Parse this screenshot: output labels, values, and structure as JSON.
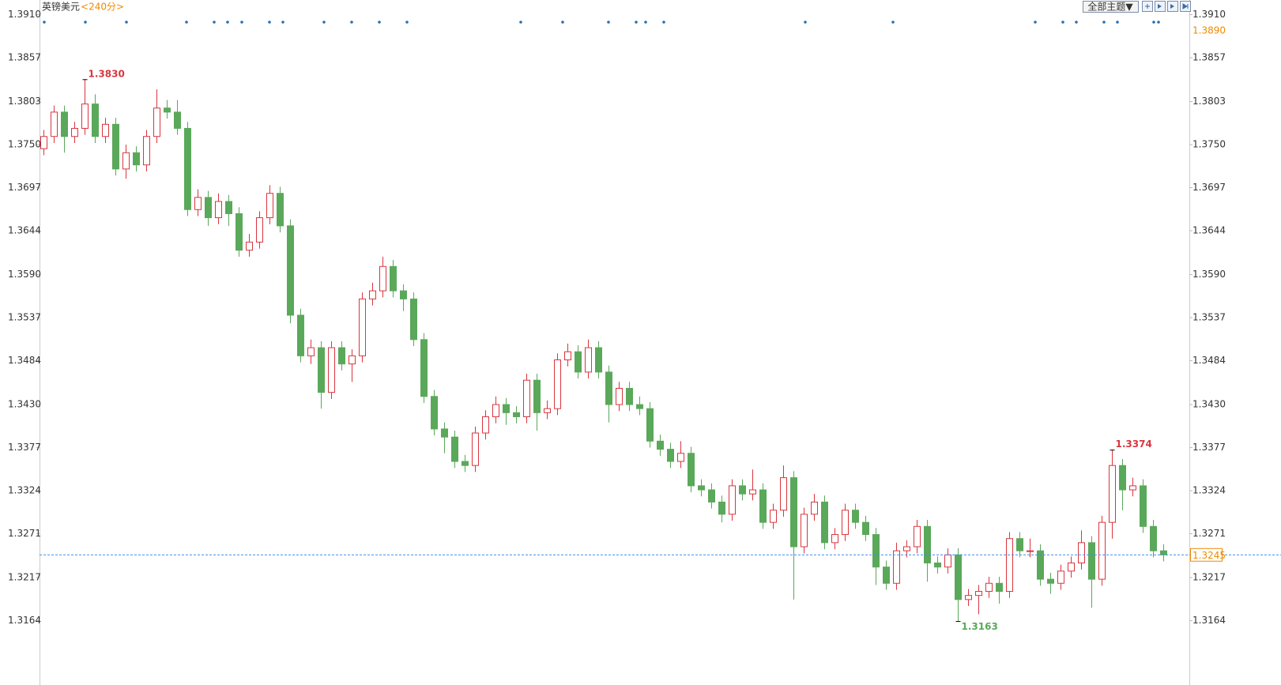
{
  "chart_data": {
    "type": "candlestick",
    "title": "英镑美元",
    "subtitle": "<240分>",
    "buttons": [
      "全部主题▼"
    ],
    "up_color": "#d9363e",
    "down_color": "#5aa85a",
    "last_color": "#3a8ee6",
    "ylim": [
      1.3113,
      1.3928
    ],
    "yticks": [
      {
        "value": 1.391,
        "label": "1.3910"
      },
      1.3857,
      1.3803,
      {
        "value": 1.375,
        "label": "1.3750"
      },
      1.3697,
      1.3644,
      {
        "value": 1.359,
        "label": "1.3590"
      },
      1.3537,
      1.3484,
      {
        "value": 1.343,
        "label": "1.3430"
      },
      1.3377,
      1.3324,
      1.3271,
      1.3217,
      1.3164
    ],
    "right_marker": {
      "value": 1.389,
      "label": "1.3890"
    },
    "last_price": 1.3245,
    "annotations": [
      "1.3830",
      "1.3163",
      "1.3374"
    ],
    "ohlc": [
      [
        1.3745,
        1.3768,
        1.3737,
        1.376
      ],
      [
        1.376,
        1.3798,
        1.3752,
        1.379
      ],
      [
        1.379,
        1.3798,
        1.374,
        1.376
      ],
      [
        1.376,
        1.3778,
        1.3752,
        1.377
      ],
      [
        1.377,
        1.383,
        1.3762,
        1.38
      ],
      [
        1.38,
        1.3812,
        1.3752,
        1.376
      ],
      [
        1.376,
        1.3783,
        1.3752,
        1.3775
      ],
      [
        1.3775,
        1.3783,
        1.3712,
        1.372
      ],
      [
        1.372,
        1.375,
        1.3708,
        1.374
      ],
      [
        1.374,
        1.3748,
        1.3717,
        1.3725
      ],
      [
        1.3725,
        1.3768,
        1.3717,
        1.376
      ],
      [
        1.376,
        1.3818,
        1.3752,
        1.3795
      ],
      [
        1.3795,
        1.3805,
        1.3782,
        1.379
      ],
      [
        1.379,
        1.3805,
        1.3762,
        1.377
      ],
      [
        1.377,
        1.3778,
        1.3662,
        1.367
      ],
      [
        1.367,
        1.3695,
        1.3662,
        1.3685
      ],
      [
        1.3685,
        1.3693,
        1.365,
        1.366
      ],
      [
        1.366,
        1.369,
        1.3652,
        1.368
      ],
      [
        1.368,
        1.3688,
        1.365,
        1.3665
      ],
      [
        1.3665,
        1.3673,
        1.3612,
        1.362
      ],
      [
        1.362,
        1.364,
        1.3612,
        1.363
      ],
      [
        1.363,
        1.3668,
        1.3622,
        1.366
      ],
      [
        1.366,
        1.37,
        1.3652,
        1.369
      ],
      [
        1.369,
        1.3698,
        1.3642,
        1.365
      ],
      [
        1.365,
        1.3658,
        1.353,
        1.354
      ],
      [
        1.354,
        1.3548,
        1.3482,
        1.349
      ],
      [
        1.349,
        1.351,
        1.348,
        1.35
      ],
      [
        1.35,
        1.3508,
        1.3425,
        1.3445
      ],
      [
        1.3445,
        1.3508,
        1.3437,
        1.35
      ],
      [
        1.35,
        1.3508,
        1.3472,
        1.348
      ],
      [
        1.348,
        1.3498,
        1.3458,
        1.349
      ],
      [
        1.349,
        1.3568,
        1.3482,
        1.356
      ],
      [
        1.356,
        1.358,
        1.3552,
        1.357
      ],
      [
        1.357,
        1.3612,
        1.3562,
        1.36
      ],
      [
        1.36,
        1.3608,
        1.3562,
        1.357
      ],
      [
        1.357,
        1.3578,
        1.3545,
        1.356
      ],
      [
        1.356,
        1.3568,
        1.3502,
        1.351
      ],
      [
        1.351,
        1.3518,
        1.3432,
        1.344
      ],
      [
        1.344,
        1.3448,
        1.3392,
        1.34
      ],
      [
        1.34,
        1.3408,
        1.337,
        1.339
      ],
      [
        1.339,
        1.3398,
        1.3352,
        1.336
      ],
      [
        1.336,
        1.3368,
        1.3347,
        1.3355
      ],
      [
        1.3355,
        1.3403,
        1.3347,
        1.3395
      ],
      [
        1.3395,
        1.3423,
        1.3387,
        1.3415
      ],
      [
        1.3415,
        1.344,
        1.3407,
        1.343
      ],
      [
        1.343,
        1.3438,
        1.3405,
        1.342
      ],
      [
        1.342,
        1.3428,
        1.3407,
        1.3415
      ],
      [
        1.3415,
        1.3468,
        1.3407,
        1.346
      ],
      [
        1.346,
        1.3468,
        1.3398,
        1.342
      ],
      [
        1.342,
        1.3435,
        1.3412,
        1.3425
      ],
      [
        1.3425,
        1.3493,
        1.3417,
        1.3485
      ],
      [
        1.3485,
        1.3505,
        1.3477,
        1.3495
      ],
      [
        1.3495,
        1.3503,
        1.3462,
        1.347
      ],
      [
        1.347,
        1.351,
        1.3462,
        1.35
      ],
      [
        1.35,
        1.3508,
        1.3462,
        1.347
      ],
      [
        1.347,
        1.3478,
        1.3408,
        1.343
      ],
      [
        1.343,
        1.3458,
        1.3422,
        1.345
      ],
      [
        1.345,
        1.3458,
        1.3422,
        1.343
      ],
      [
        1.343,
        1.344,
        1.3417,
        1.3425
      ],
      [
        1.3425,
        1.3433,
        1.3377,
        1.3385
      ],
      [
        1.3385,
        1.3393,
        1.3367,
        1.3375
      ],
      [
        1.3375,
        1.3383,
        1.3352,
        1.336
      ],
      [
        1.336,
        1.3385,
        1.3352,
        1.337
      ],
      [
        1.337,
        1.3378,
        1.3322,
        1.333
      ],
      [
        1.333,
        1.3338,
        1.3317,
        1.3325
      ],
      [
        1.3325,
        1.3333,
        1.3302,
        1.331
      ],
      [
        1.331,
        1.3318,
        1.3285,
        1.3295
      ],
      [
        1.3295,
        1.3338,
        1.3287,
        1.333
      ],
      [
        1.333,
        1.3338,
        1.3312,
        1.332
      ],
      [
        1.332,
        1.335,
        1.3312,
        1.3325
      ],
      [
        1.3325,
        1.3333,
        1.3277,
        1.3285
      ],
      [
        1.3285,
        1.3308,
        1.3277,
        1.33
      ],
      [
        1.33,
        1.3355,
        1.3292,
        1.334
      ],
      [
        1.334,
        1.3348,
        1.319,
        1.3255
      ],
      [
        1.3255,
        1.3303,
        1.3247,
        1.3295
      ],
      [
        1.3295,
        1.332,
        1.3287,
        1.331
      ],
      [
        1.331,
        1.3318,
        1.3252,
        1.326
      ],
      [
        1.326,
        1.3278,
        1.3252,
        1.327
      ],
      [
        1.327,
        1.3308,
        1.3262,
        1.33
      ],
      [
        1.33,
        1.3308,
        1.3277,
        1.3285
      ],
      [
        1.3285,
        1.3293,
        1.3262,
        1.327
      ],
      [
        1.327,
        1.3278,
        1.3208,
        1.323
      ],
      [
        1.323,
        1.3238,
        1.3202,
        1.321
      ],
      [
        1.321,
        1.326,
        1.3202,
        1.325
      ],
      [
        1.325,
        1.3263,
        1.3242,
        1.3255
      ],
      [
        1.3255,
        1.3288,
        1.3247,
        1.328
      ],
      [
        1.328,
        1.3288,
        1.3212,
        1.3235
      ],
      [
        1.3235,
        1.3243,
        1.3222,
        1.323
      ],
      [
        1.323,
        1.3253,
        1.3222,
        1.3245
      ],
      [
        1.3245,
        1.3253,
        1.3163,
        1.319
      ],
      [
        1.319,
        1.3203,
        1.3182,
        1.3195
      ],
      [
        1.3195,
        1.3208,
        1.3172,
        1.32
      ],
      [
        1.32,
        1.3218,
        1.3192,
        1.321
      ],
      [
        1.321,
        1.3218,
        1.3185,
        1.32
      ],
      [
        1.32,
        1.3273,
        1.3192,
        1.3265
      ],
      [
        1.3265,
        1.3273,
        1.3242,
        1.325
      ],
      [
        1.325,
        1.3265,
        1.3242,
        1.325
      ],
      [
        1.325,
        1.3258,
        1.3207,
        1.3215
      ],
      [
        1.3215,
        1.3223,
        1.3197,
        1.321
      ],
      [
        1.321,
        1.3233,
        1.3202,
        1.3225
      ],
      [
        1.3225,
        1.3243,
        1.3217,
        1.3235
      ],
      [
        1.3235,
        1.3275,
        1.3227,
        1.326
      ],
      [
        1.326,
        1.3268,
        1.318,
        1.3215
      ],
      [
        1.3215,
        1.3293,
        1.3207,
        1.3285
      ],
      [
        1.3285,
        1.3374,
        1.3265,
        1.3355
      ],
      [
        1.3355,
        1.3363,
        1.33,
        1.3325
      ],
      [
        1.3325,
        1.334,
        1.3317,
        1.333
      ],
      [
        1.333,
        1.3338,
        1.3272,
        1.328
      ],
      [
        1.328,
        1.3288,
        1.3242,
        1.325
      ],
      [
        1.325,
        1.3258,
        1.3237,
        1.3245
      ]
    ]
  }
}
